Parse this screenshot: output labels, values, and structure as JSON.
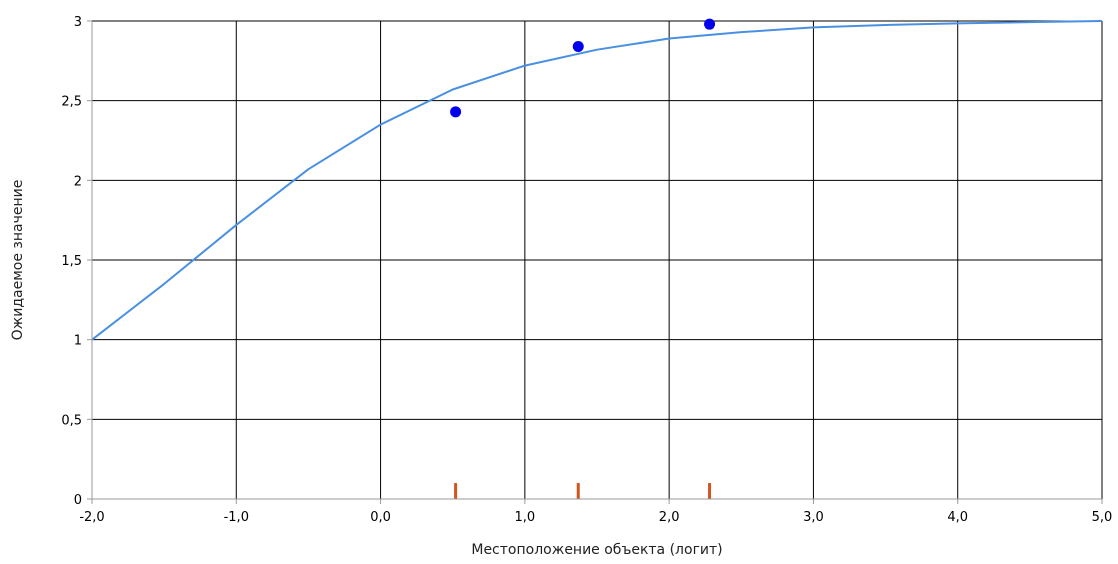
{
  "chart_data": {
    "type": "line",
    "title": "",
    "xlabel": "Местоположение объекта (логит)",
    "ylabel": "Ожидаемое значение",
    "xlim": [
      -2.0,
      5.0
    ],
    "ylim": [
      0,
      3
    ],
    "grid": true,
    "legend": "none",
    "x_ticks": [
      {
        "value": -2.0,
        "label": "-2,0"
      },
      {
        "value": -1.0,
        "label": "-1,0"
      },
      {
        "value": 0.0,
        "label": "0,0"
      },
      {
        "value": 1.0,
        "label": "1,0"
      },
      {
        "value": 2.0,
        "label": "2,0"
      },
      {
        "value": 3.0,
        "label": "3,0"
      },
      {
        "value": 4.0,
        "label": "4,0"
      },
      {
        "value": 5.0,
        "label": "5,0"
      }
    ],
    "y_ticks": [
      {
        "value": 0,
        "label": "0"
      },
      {
        "value": 0.5,
        "label": "0,5"
      },
      {
        "value": 1,
        "label": "1"
      },
      {
        "value": 1.5,
        "label": "1,5"
      },
      {
        "value": 2,
        "label": "2"
      },
      {
        "value": 2.5,
        "label": "2,5"
      },
      {
        "value": 3,
        "label": "3"
      }
    ],
    "series": [
      {
        "type": "line",
        "color": "#4a90e2",
        "x": [
          -2.0,
          -1.5,
          -1.0,
          -0.5,
          0.0,
          0.5,
          1.0,
          1.5,
          2.0,
          2.5,
          3.0,
          3.5,
          4.0,
          4.5,
          5.0
        ],
        "y": [
          1.0,
          1.35,
          1.72,
          2.07,
          2.35,
          2.57,
          2.72,
          2.82,
          2.89,
          2.93,
          2.96,
          2.975,
          2.985,
          2.993,
          3.0
        ]
      },
      {
        "type": "scatter",
        "color": "#0000ee",
        "x": [
          0.52,
          1.37,
          2.28
        ],
        "y": [
          2.43,
          2.84,
          2.98
        ]
      },
      {
        "type": "marker",
        "color": "#d2541e",
        "x": [
          0.52,
          1.37,
          2.28
        ],
        "height": [
          0.1,
          0.1,
          0.1
        ]
      }
    ],
    "colors": {
      "grid": "#000000",
      "axis": "#999999"
    }
  }
}
